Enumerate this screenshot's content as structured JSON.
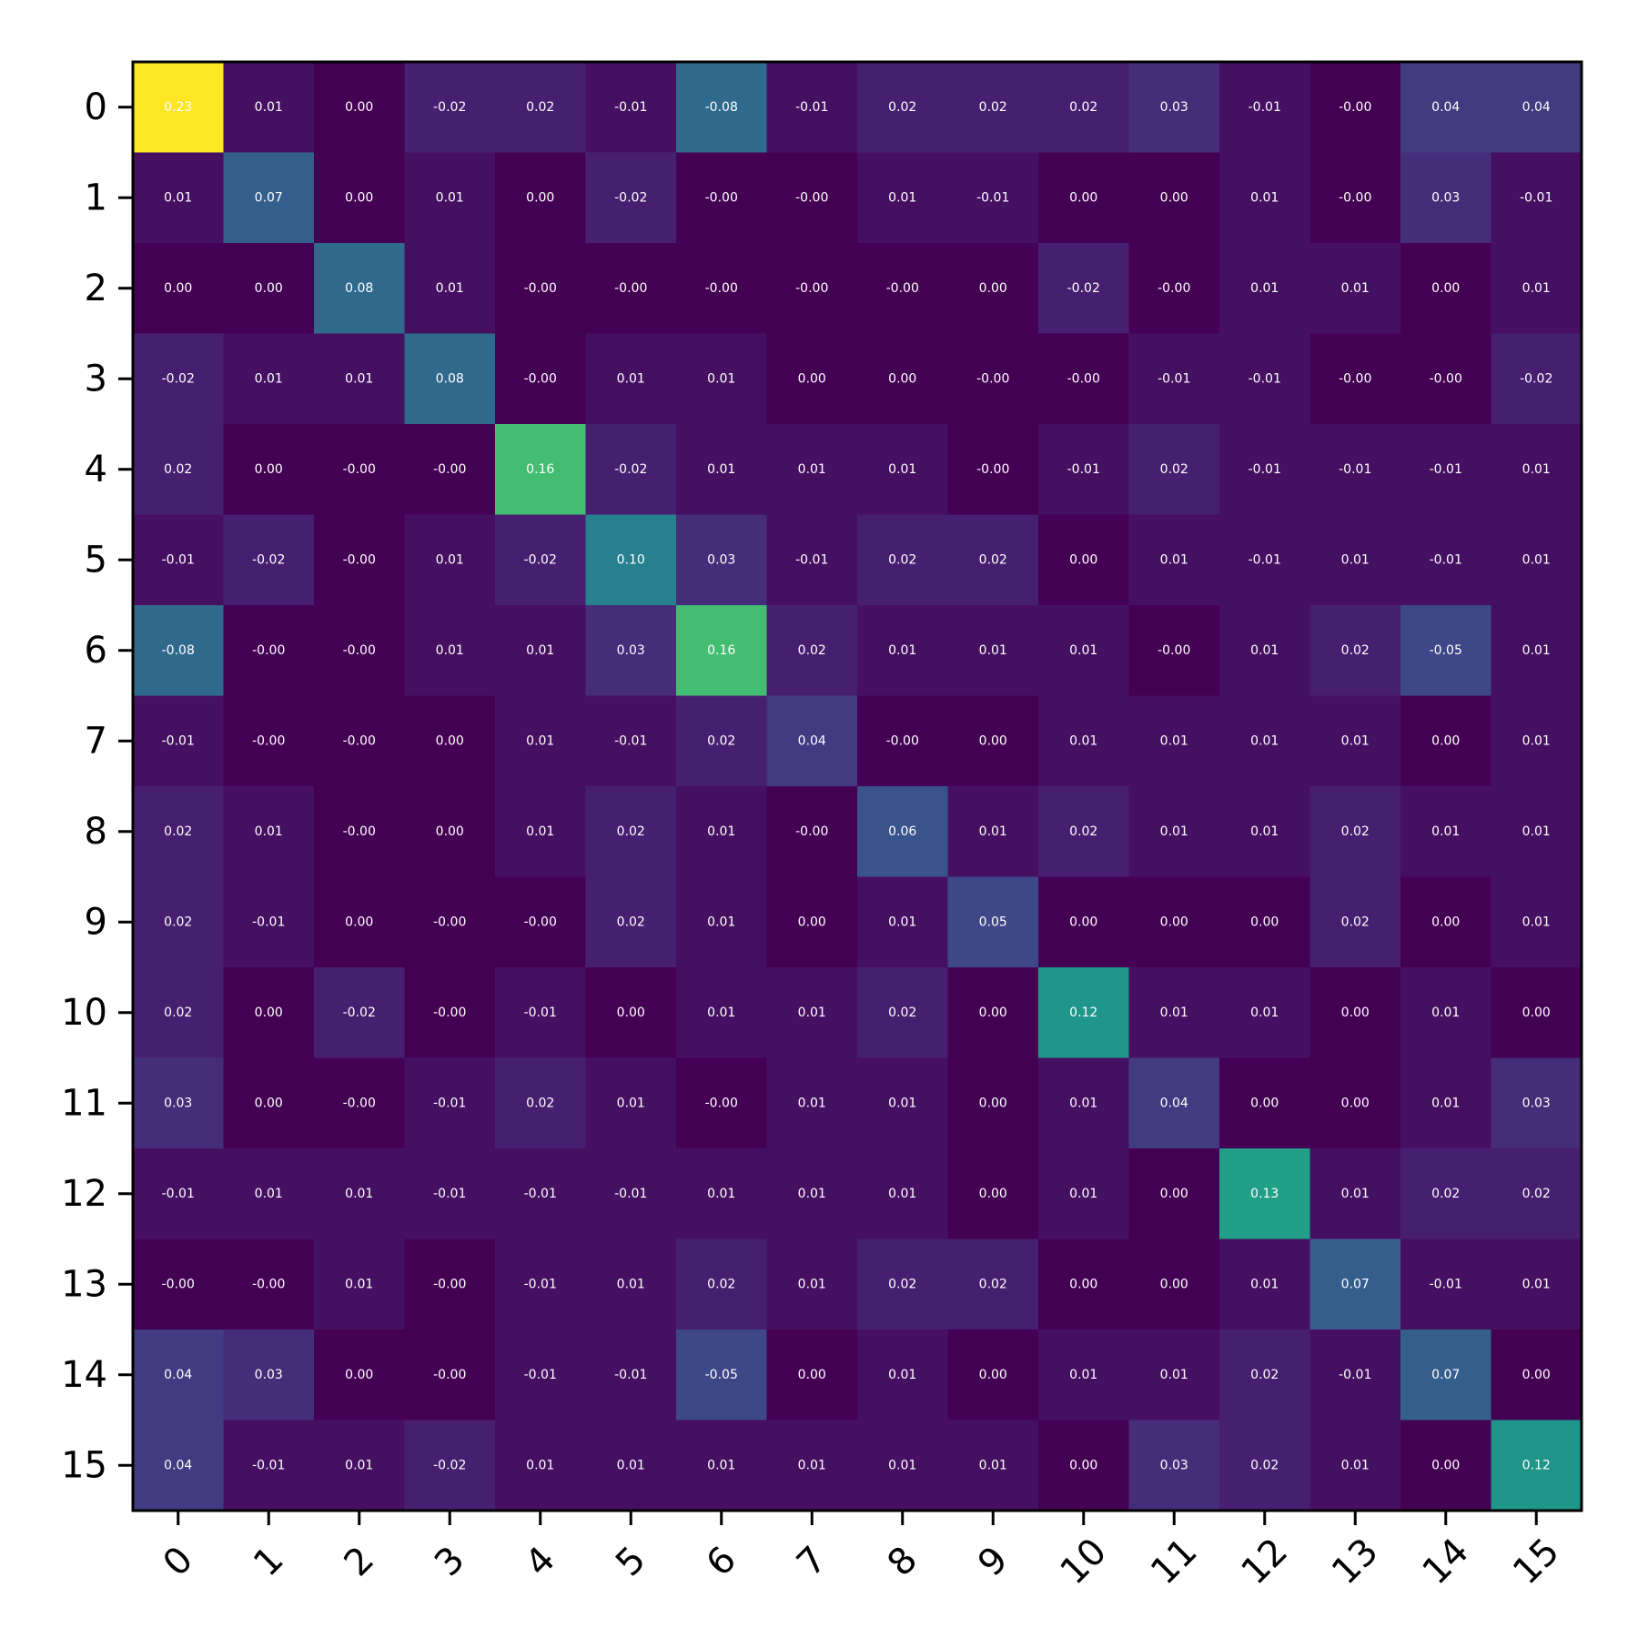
{
  "chart_data": {
    "type": "heatmap",
    "title": "",
    "xlabel": "",
    "ylabel": "",
    "colormap": "viridis",
    "vmin": -0.08,
    "vmax": 0.23,
    "x_categories": [
      "0",
      "1",
      "2",
      "3",
      "4",
      "5",
      "6",
      "7",
      "8",
      "9",
      "10",
      "11",
      "12",
      "13",
      "14",
      "15"
    ],
    "y_categories": [
      "0",
      "1",
      "2",
      "3",
      "4",
      "5",
      "6",
      "7",
      "8",
      "9",
      "10",
      "11",
      "12",
      "13",
      "14",
      "15"
    ],
    "values": [
      [
        0.23,
        0.01,
        0.0,
        -0.02,
        0.02,
        -0.01,
        -0.08,
        -0.01,
        0.02,
        0.02,
        0.02,
        0.03,
        -0.01,
        -0.0,
        0.04,
        0.04
      ],
      [
        0.01,
        0.07,
        0.0,
        0.01,
        0.0,
        -0.02,
        -0.0,
        -0.0,
        0.01,
        -0.01,
        0.0,
        0.0,
        0.01,
        -0.0,
        0.03,
        -0.01
      ],
      [
        0.0,
        0.0,
        0.08,
        0.01,
        -0.0,
        -0.0,
        -0.0,
        -0.0,
        -0.0,
        0.0,
        -0.02,
        -0.0,
        0.01,
        0.01,
        0.0,
        0.01
      ],
      [
        -0.02,
        0.01,
        0.01,
        0.08,
        -0.0,
        0.01,
        0.01,
        0.0,
        0.0,
        -0.0,
        -0.0,
        -0.01,
        -0.01,
        -0.0,
        -0.0,
        -0.02
      ],
      [
        0.02,
        0.0,
        -0.0,
        -0.0,
        0.16,
        -0.02,
        0.01,
        0.01,
        0.01,
        -0.0,
        -0.01,
        0.02,
        -0.01,
        -0.01,
        -0.01,
        0.01
      ],
      [
        -0.01,
        -0.02,
        -0.0,
        0.01,
        -0.02,
        0.1,
        0.03,
        -0.01,
        0.02,
        0.02,
        0.0,
        0.01,
        -0.01,
        0.01,
        -0.01,
        0.01
      ],
      [
        -0.08,
        -0.0,
        -0.0,
        0.01,
        0.01,
        0.03,
        0.16,
        0.02,
        0.01,
        0.01,
        0.01,
        -0.0,
        0.01,
        0.02,
        -0.05,
        0.01
      ],
      [
        -0.01,
        -0.0,
        -0.0,
        0.0,
        0.01,
        -0.01,
        0.02,
        0.04,
        -0.0,
        0.0,
        0.01,
        0.01,
        0.01,
        0.01,
        0.0,
        0.01
      ],
      [
        0.02,
        0.01,
        -0.0,
        0.0,
        0.01,
        0.02,
        0.01,
        -0.0,
        0.06,
        0.01,
        0.02,
        0.01,
        0.01,
        0.02,
        0.01,
        0.01
      ],
      [
        0.02,
        -0.01,
        0.0,
        -0.0,
        -0.0,
        0.02,
        0.01,
        0.0,
        0.01,
        0.05,
        0.0,
        0.0,
        0.0,
        0.02,
        0.0,
        0.01
      ],
      [
        0.02,
        0.0,
        -0.02,
        -0.0,
        -0.01,
        0.0,
        0.01,
        0.01,
        0.02,
        0.0,
        0.12,
        0.01,
        0.01,
        0.0,
        0.01,
        0.0
      ],
      [
        0.03,
        0.0,
        -0.0,
        -0.01,
        0.02,
        0.01,
        -0.0,
        0.01,
        0.01,
        0.0,
        0.01,
        0.04,
        0.0,
        0.0,
        0.01,
        0.03
      ],
      [
        -0.01,
        0.01,
        0.01,
        -0.01,
        -0.01,
        -0.01,
        0.01,
        0.01,
        0.01,
        0.0,
        0.01,
        0.0,
        0.13,
        0.01,
        0.02,
        0.02
      ],
      [
        -0.0,
        -0.0,
        0.01,
        -0.0,
        -0.01,
        0.01,
        0.02,
        0.01,
        0.02,
        0.02,
        0.0,
        0.0,
        0.01,
        0.07,
        -0.01,
        0.01
      ],
      [
        0.04,
        0.03,
        0.0,
        -0.0,
        -0.01,
        -0.01,
        -0.05,
        0.0,
        0.01,
        0.0,
        0.01,
        0.01,
        0.02,
        -0.01,
        0.07,
        0.0
      ],
      [
        0.04,
        -0.01,
        0.01,
        -0.02,
        0.01,
        0.01,
        0.01,
        0.01,
        0.01,
        0.01,
        0.0,
        0.03,
        0.02,
        0.01,
        0.0,
        0.12
      ]
    ],
    "labels": [
      [
        "0.23",
        "0.01",
        "0.00",
        "-0.02",
        "0.02",
        "-0.01",
        "-0.08",
        "-0.01",
        "0.02",
        "0.02",
        "0.02",
        "0.03",
        "-0.01",
        "-0.00",
        "0.04",
        "0.04"
      ],
      [
        "0.01",
        "0.07",
        "0.00",
        "0.01",
        "0.00",
        "-0.02",
        "-0.00",
        "-0.00",
        "0.01",
        "-0.01",
        "0.00",
        "0.00",
        "0.01",
        "-0.00",
        "0.03",
        "-0.01"
      ],
      [
        "0.00",
        "0.00",
        "0.08",
        "0.01",
        "-0.00",
        "-0.00",
        "-0.00",
        "-0.00",
        "-0.00",
        "0.00",
        "-0.02",
        "-0.00",
        "0.01",
        "0.01",
        "0.00",
        "0.01"
      ],
      [
        "-0.02",
        "0.01",
        "0.01",
        "0.08",
        "-0.00",
        "0.01",
        "0.01",
        "0.00",
        "0.00",
        "-0.00",
        "-0.00",
        "-0.01",
        "-0.01",
        "-0.00",
        "-0.00",
        "-0.02"
      ],
      [
        "0.02",
        "0.00",
        "-0.00",
        "-0.00",
        "0.16",
        "-0.02",
        "0.01",
        "0.01",
        "0.01",
        "-0.00",
        "-0.01",
        "0.02",
        "-0.01",
        "-0.01",
        "-0.01",
        "0.01"
      ],
      [
        "-0.01",
        "-0.02",
        "-0.00",
        "0.01",
        "-0.02",
        "0.10",
        "0.03",
        "-0.01",
        "0.02",
        "0.02",
        "0.00",
        "0.01",
        "-0.01",
        "0.01",
        "-0.01",
        "0.01"
      ],
      [
        "-0.08",
        "-0.00",
        "-0.00",
        "0.01",
        "0.01",
        "0.03",
        "0.16",
        "0.02",
        "0.01",
        "0.01",
        "0.01",
        "-0.00",
        "0.01",
        "0.02",
        "-0.05",
        "0.01"
      ],
      [
        "-0.01",
        "-0.00",
        "-0.00",
        "0.00",
        "0.01",
        "-0.01",
        "0.02",
        "0.04",
        "-0.00",
        "0.00",
        "0.01",
        "0.01",
        "0.01",
        "0.01",
        "0.00",
        "0.01"
      ],
      [
        "0.02",
        "0.01",
        "-0.00",
        "0.00",
        "0.01",
        "0.02",
        "0.01",
        "-0.00",
        "0.06",
        "0.01",
        "0.02",
        "0.01",
        "0.01",
        "0.02",
        "0.01",
        "0.01"
      ],
      [
        "0.02",
        "-0.01",
        "0.00",
        "-0.00",
        "-0.00",
        "0.02",
        "0.01",
        "0.00",
        "0.01",
        "0.05",
        "0.00",
        "0.00",
        "0.00",
        "0.02",
        "0.00",
        "0.01"
      ],
      [
        "0.02",
        "0.00",
        "-0.02",
        "-0.00",
        "-0.01",
        "0.00",
        "0.01",
        "0.01",
        "0.02",
        "0.00",
        "0.12",
        "0.01",
        "0.01",
        "0.00",
        "0.01",
        "0.00"
      ],
      [
        "0.03",
        "0.00",
        "-0.00",
        "-0.01",
        "0.02",
        "0.01",
        "-0.00",
        "0.01",
        "0.01",
        "0.00",
        "0.01",
        "0.04",
        "0.00",
        "0.00",
        "0.01",
        "0.03"
      ],
      [
        "-0.01",
        "0.01",
        "0.01",
        "-0.01",
        "-0.01",
        "-0.01",
        "0.01",
        "0.01",
        "0.01",
        "0.00",
        "0.01",
        "0.00",
        "0.13",
        "0.01",
        "0.02",
        "0.02"
      ],
      [
        "-0.00",
        "-0.00",
        "0.01",
        "-0.00",
        "-0.01",
        "0.01",
        "0.02",
        "0.01",
        "0.02",
        "0.02",
        "0.00",
        "0.00",
        "0.01",
        "0.07",
        "-0.01",
        "0.01"
      ],
      [
        "0.04",
        "0.03",
        "0.00",
        "-0.00",
        "-0.01",
        "-0.01",
        "-0.05",
        "0.00",
        "0.01",
        "0.00",
        "0.01",
        "0.01",
        "0.02",
        "-0.01",
        "0.07",
        "0.00"
      ],
      [
        "0.04",
        "-0.01",
        "0.01",
        "-0.02",
        "0.01",
        "0.01",
        "0.01",
        "0.01",
        "0.01",
        "0.01",
        "0.00",
        "0.03",
        "0.02",
        "0.01",
        "0.00",
        "0.12"
      ]
    ],
    "colors": {
      "annotation_text": "#ffffff",
      "axis": "#000000",
      "background": "#ffffff"
    }
  }
}
